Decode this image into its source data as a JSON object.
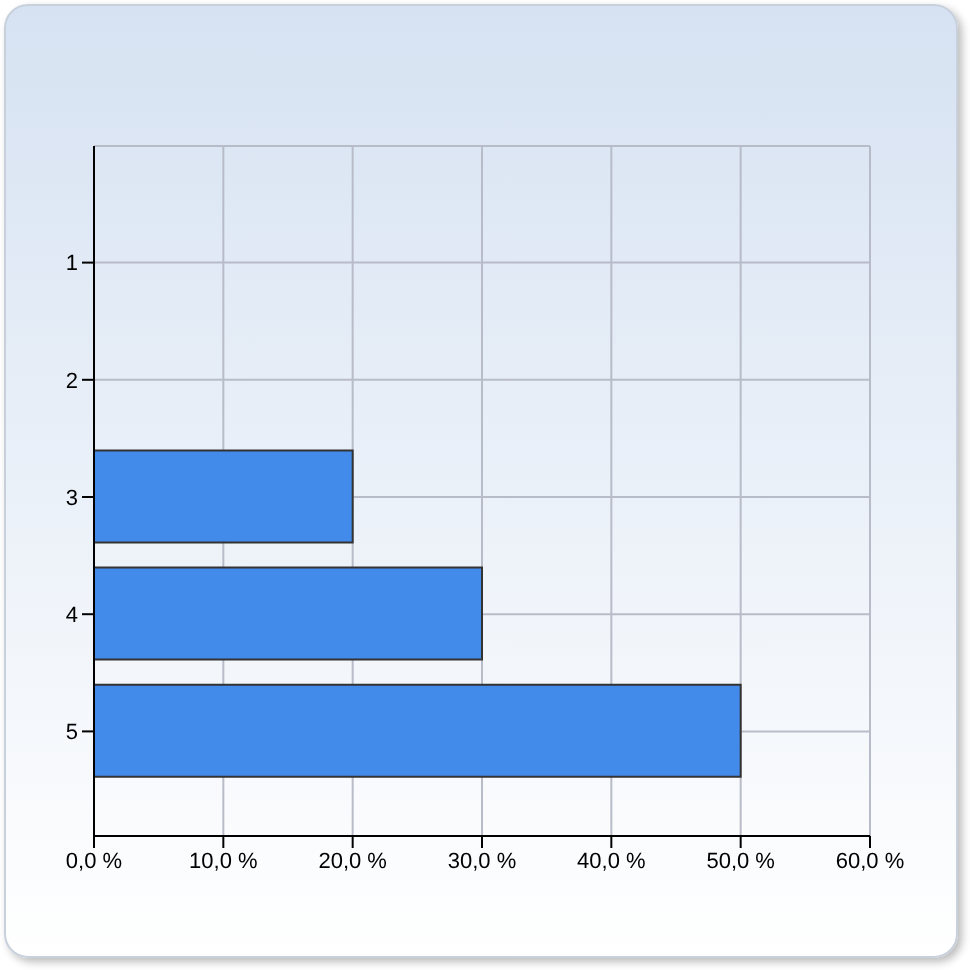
{
  "chart_data": {
    "type": "bar",
    "orientation": "horizontal",
    "categories": [
      "1",
      "2",
      "3",
      "4",
      "5"
    ],
    "values": [
      0,
      0,
      20,
      30,
      50
    ],
    "color": "#428bea",
    "xlim": [
      0,
      60
    ],
    "xticks": [
      {
        "value": 0,
        "label": "0,0 %"
      },
      {
        "value": 10,
        "label": "10,0 %"
      },
      {
        "value": 20,
        "label": "20,0 %"
      },
      {
        "value": 30,
        "label": "30,0 %"
      },
      {
        "value": 40,
        "label": "40,0 %"
      },
      {
        "value": 50,
        "label": "50,0 %"
      },
      {
        "value": 60,
        "label": "60,0 %"
      }
    ],
    "grid": true
  }
}
